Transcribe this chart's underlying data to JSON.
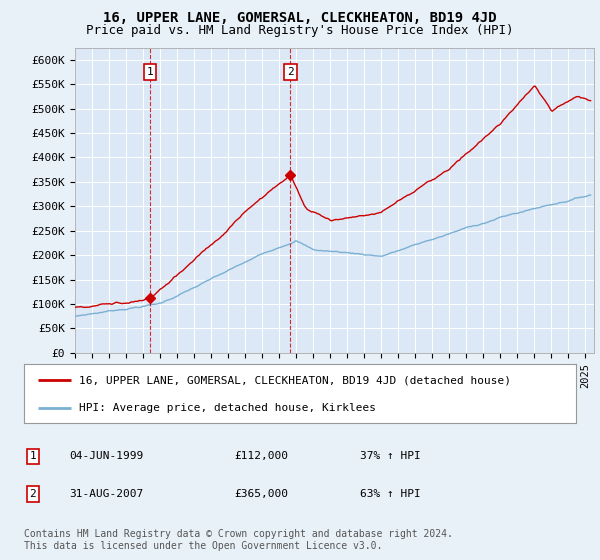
{
  "title": "16, UPPER LANE, GOMERSAL, CLECKHEATON, BD19 4JD",
  "subtitle": "Price paid vs. HM Land Registry's House Price Index (HPI)",
  "ylim": [
    0,
    625000
  ],
  "yticks": [
    0,
    50000,
    100000,
    150000,
    200000,
    250000,
    300000,
    350000,
    400000,
    450000,
    500000,
    550000,
    600000
  ],
  "ytick_labels": [
    "£0",
    "£50K",
    "£100K",
    "£150K",
    "£200K",
    "£250K",
    "£300K",
    "£350K",
    "£400K",
    "£450K",
    "£500K",
    "£550K",
    "£600K"
  ],
  "background_color": "#e8f0f8",
  "plot_bg_color": "#dce8f5",
  "grid_color": "#ffffff",
  "red_line_color": "#cc0000",
  "blue_line_color": "#7ab0d4",
  "marker1_date": 1999.42,
  "marker1_value": 112000,
  "marker2_date": 2007.66,
  "marker2_value": 365000,
  "marker1_label": "1",
  "marker2_label": "2",
  "legend_red_label": "16, UPPER LANE, GOMERSAL, CLECKHEATON, BD19 4JD (detached house)",
  "legend_blue_label": "HPI: Average price, detached house, Kirklees",
  "table_row1": [
    "1",
    "04-JUN-1999",
    "£112,000",
    "37% ↑ HPI"
  ],
  "table_row2": [
    "2",
    "31-AUG-2007",
    "£365,000",
    "63% ↑ HPI"
  ],
  "footnote": "Contains HM Land Registry data © Crown copyright and database right 2024.\nThis data is licensed under the Open Government Licence v3.0.",
  "title_fontsize": 10,
  "subtitle_fontsize": 9,
  "tick_fontsize": 8,
  "legend_fontsize": 8,
  "table_fontsize": 8,
  "footnote_fontsize": 7
}
